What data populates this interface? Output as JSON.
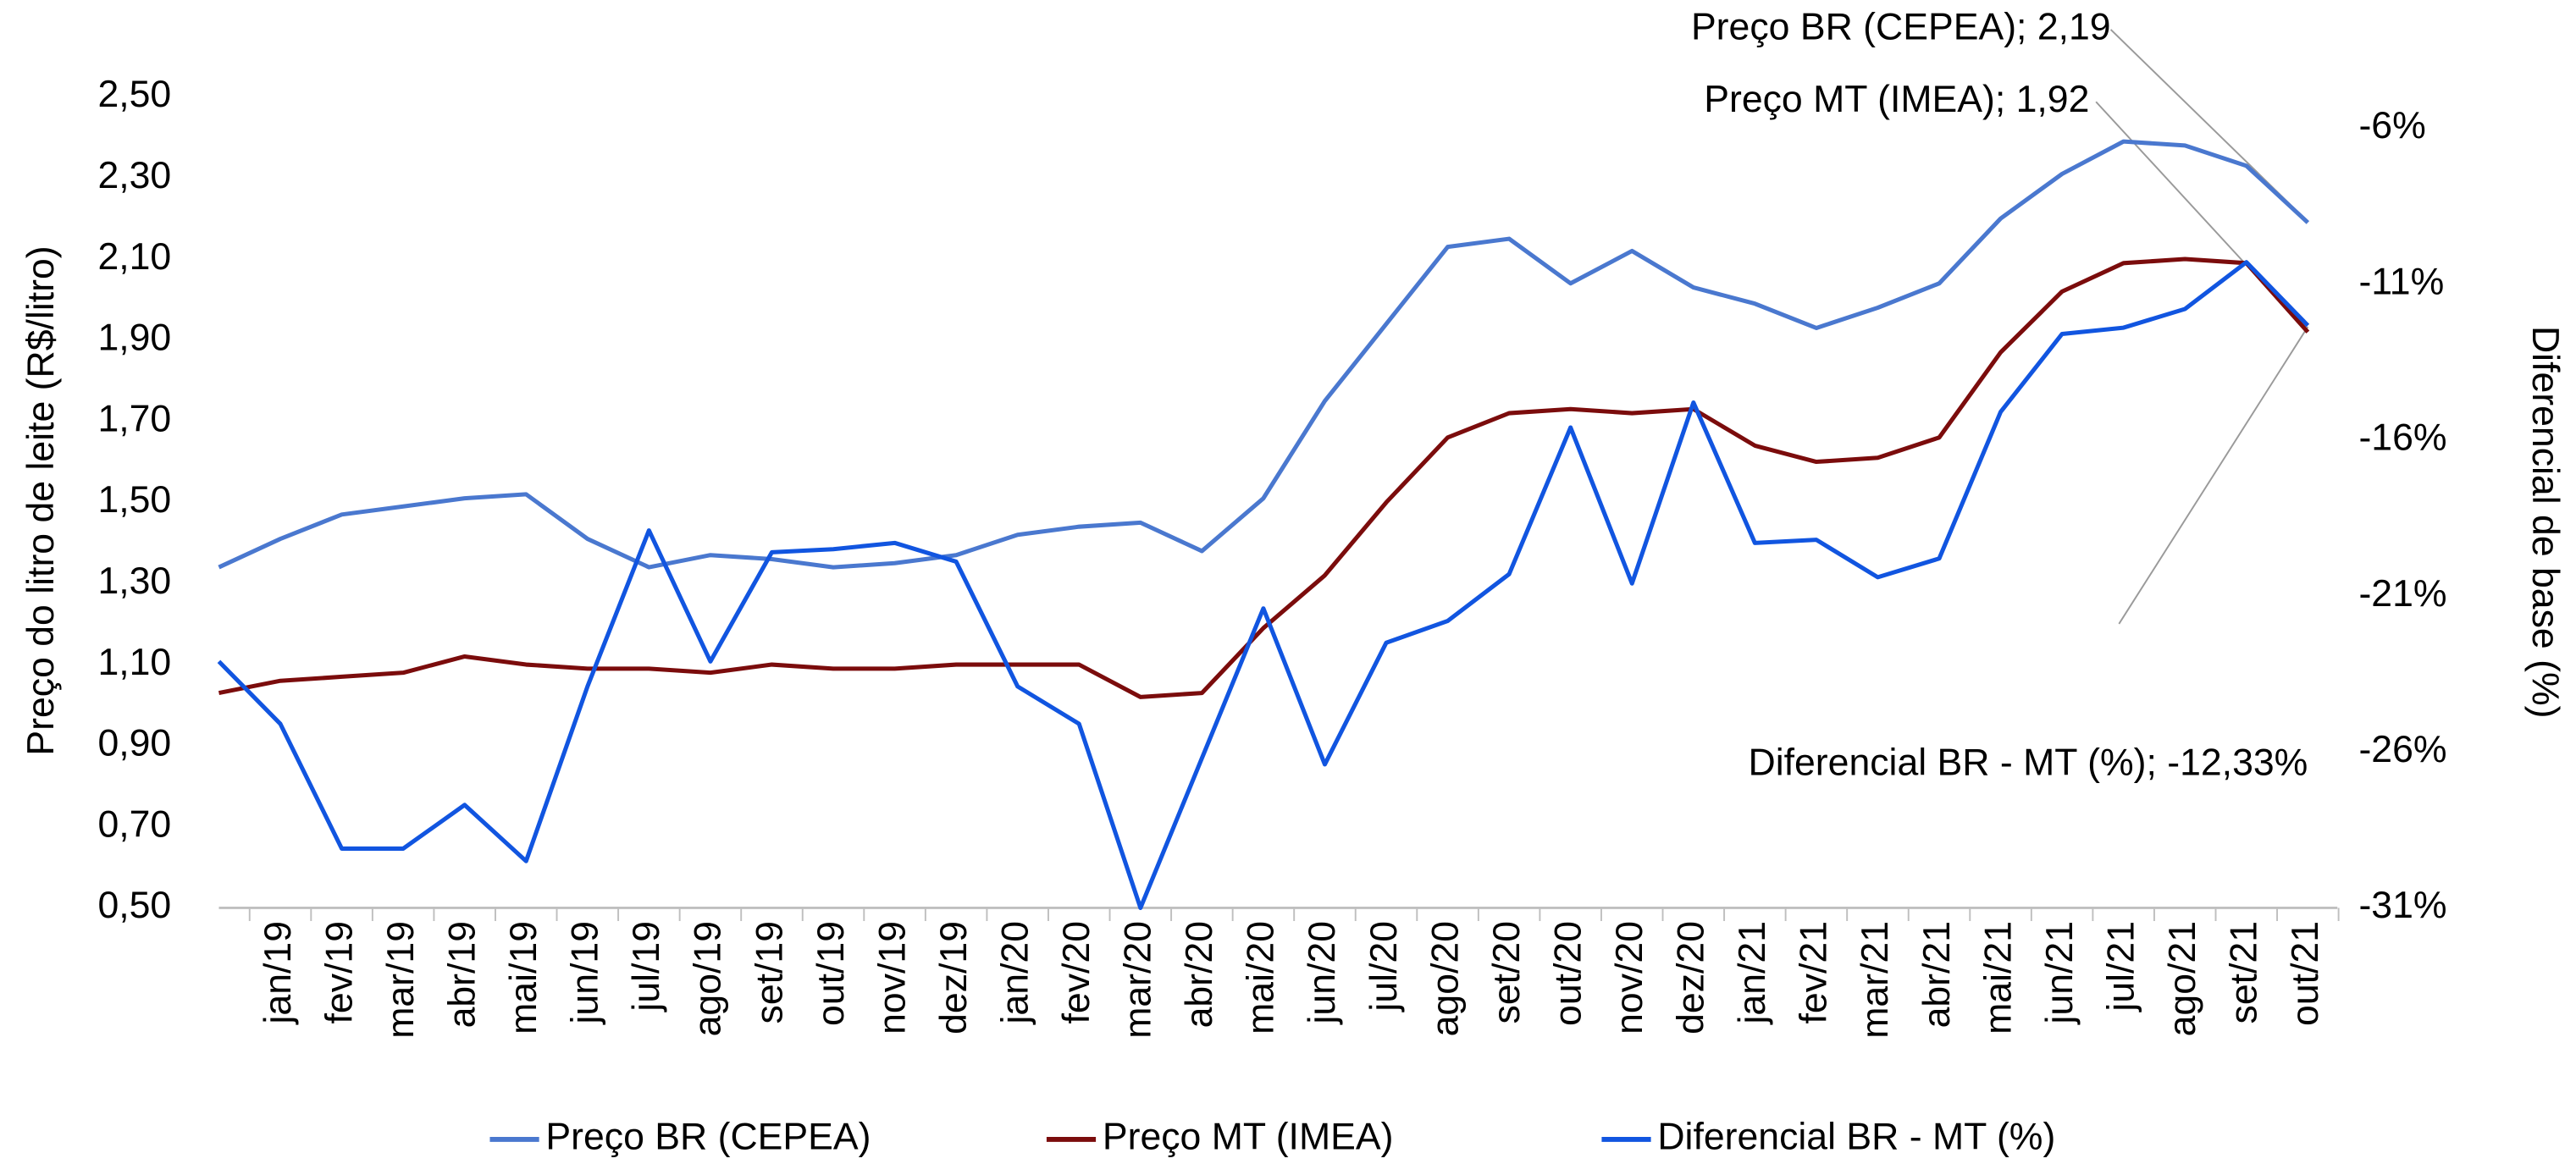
{
  "chart_data": {
    "type": "line",
    "y_label": "Preço do litro de leite (R$/litro)",
    "y2_label": "Diferencial de base (%)",
    "categories": [
      null,
      "jan/19",
      "fev/19",
      "mar/19",
      "abr/19",
      "mai/19",
      "jun/19",
      "jul/19",
      "ago/19",
      "set/19",
      "out/19",
      "nov/19",
      "dez/19",
      "jan/20",
      "fev/20",
      "mar/20",
      "abr/20",
      "mai/20",
      "jun/20",
      "jul/20",
      "ago/20",
      "set/20",
      "out/20",
      "nov/20",
      "dez/20",
      "jan/21",
      "fev/21",
      "mar/21",
      "abr/21",
      "mai/21",
      "jun/21",
      "jul/21",
      "ago/21",
      "set/21",
      "out/21"
    ],
    "series": [
      {
        "name": "Preço BR (CEPEA)",
        "color": "#4a78cf",
        "values": [
          1.34,
          1.41,
          1.47,
          1.49,
          1.51,
          1.52,
          1.41,
          1.34,
          1.37,
          1.36,
          1.34,
          1.35,
          1.37,
          1.42,
          1.44,
          1.45,
          1.38,
          1.51,
          1.75,
          1.94,
          2.13,
          2.15,
          2.04,
          2.12,
          2.03,
          1.99,
          1.93,
          1.98,
          2.04,
          2.2,
          2.31,
          2.39,
          2.38,
          2.33,
          2.19
        ],
        "value_labels": [
          null,
          null,
          null,
          null,
          null,
          null,
          null,
          null,
          null,
          null,
          null,
          null,
          null,
          null,
          null,
          null,
          null,
          null,
          null,
          null,
          null,
          null,
          null,
          null,
          null,
          null,
          null,
          null,
          null,
          null,
          null,
          null,
          null,
          null,
          "Preço BR (CEPEA); 2,19"
        ]
      },
      {
        "name": "Preço MT (IMEA)",
        "color": "#7b0c0c",
        "values": [
          1.03,
          1.06,
          1.07,
          1.08,
          1.12,
          1.1,
          1.09,
          1.09,
          1.08,
          1.1,
          1.09,
          1.09,
          1.1,
          1.1,
          1.1,
          1.02,
          1.03,
          1.19,
          1.32,
          1.5,
          1.66,
          1.72,
          1.73,
          1.72,
          1.73,
          1.64,
          1.6,
          1.61,
          1.66,
          1.87,
          2.02,
          2.09,
          2.1,
          2.09,
          1.92
        ],
        "value_labels": [
          null,
          null,
          null,
          null,
          null,
          null,
          null,
          null,
          null,
          null,
          null,
          null,
          null,
          null,
          null,
          null,
          null,
          null,
          null,
          null,
          null,
          null,
          null,
          null,
          null,
          null,
          null,
          null,
          null,
          null,
          null,
          null,
          null,
          null,
          "Preço MT (IMEA); 1,92"
        ]
      },
      {
        "name": "Diferencial BR - MT (%)",
        "color": "#1155e0",
        "axis": "y2",
        "values": [
          -23.1,
          -25.1,
          -29.1,
          -29.1,
          -27.7,
          -29.5,
          -23.9,
          -18.9,
          -23.1,
          -19.6,
          -19.5,
          -19.3,
          -19.9,
          -23.9,
          -25.1,
          -31.0,
          -26.2,
          -21.4,
          -26.4,
          -22.5,
          -21.8,
          -20.3,
          -15.6,
          -20.6,
          -14.8,
          -19.3,
          -19.2,
          -20.4,
          -19.8,
          -15.1,
          -12.6,
          -12.4,
          -11.8,
          -10.3,
          -12.33
        ],
        "value_labels": [
          null,
          null,
          null,
          null,
          null,
          null,
          null,
          null,
          null,
          null,
          null,
          null,
          null,
          null,
          null,
          null,
          null,
          null,
          null,
          null,
          null,
          null,
          null,
          null,
          null,
          null,
          null,
          null,
          null,
          null,
          null,
          null,
          null,
          null,
          "Diferencial BR - MT (%); -12,33%"
        ]
      }
    ],
    "ylim": [
      0.5,
      2.5
    ],
    "yticks": [
      {
        "value": 0.5,
        "label": "0,50"
      },
      {
        "value": 0.7,
        "label": "0,70"
      },
      {
        "value": 0.9,
        "label": "0,90"
      },
      {
        "value": 1.1,
        "label": "1,10"
      },
      {
        "value": 1.3,
        "label": "1,30"
      },
      {
        "value": 1.5,
        "label": "1,50"
      },
      {
        "value": 1.7,
        "label": "1,70"
      },
      {
        "value": 1.9,
        "label": "1,90"
      },
      {
        "value": 2.1,
        "label": "2,10"
      },
      {
        "value": 2.3,
        "label": "2,30"
      },
      {
        "value": 2.5,
        "label": "2,50"
      }
    ],
    "y2lim": [
      -31,
      -5
    ],
    "y2ticks": [
      {
        "value": -31,
        "label": "-31%"
      },
      {
        "value": -26,
        "label": "-26%"
      },
      {
        "value": -21,
        "label": "-21%"
      },
      {
        "value": -16,
        "label": "-16%"
      },
      {
        "value": -11,
        "label": "-11%"
      },
      {
        "value": -6,
        "label": "-6%"
      }
    ],
    "grid": false,
    "legend": "bottom"
  }
}
